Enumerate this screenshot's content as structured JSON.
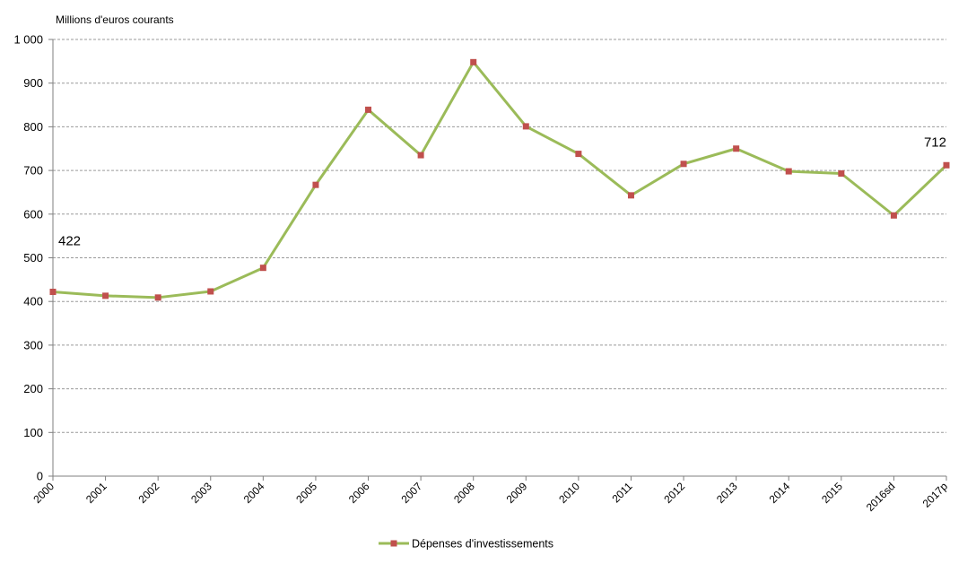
{
  "chart_data": {
    "type": "line",
    "title": "",
    "xlabel": "",
    "ylabel": "Millions d'euros  courants",
    "categories": [
      "2000",
      "2001",
      "2002",
      "2003",
      "2004",
      "2005",
      "2006",
      "2007",
      "2008",
      "2009",
      "2010",
      "2011",
      "2012",
      "2013",
      "2014",
      "2015",
      "2016sd",
      "2017p"
    ],
    "series": [
      {
        "name": "Dépenses d'investissements",
        "values": [
          422,
          413,
          409,
          423,
          477,
          667,
          839,
          735,
          948,
          801,
          738,
          643,
          715,
          750,
          698,
          693,
          597,
          712
        ],
        "color": "#9bbb59",
        "marker_color": "#c0504d"
      }
    ],
    "y_ticks": [
      "0",
      "100",
      "200",
      "300",
      "400",
      "500",
      "600",
      "700",
      "800",
      "900",
      "1 000"
    ],
    "ylim": [
      0,
      1000
    ],
    "grid": true,
    "grid_style": "dashed",
    "legend_position": "bottom",
    "data_labels": [
      {
        "category": "2000",
        "text": "422"
      },
      {
        "category": "2017p",
        "text": "712"
      }
    ]
  }
}
